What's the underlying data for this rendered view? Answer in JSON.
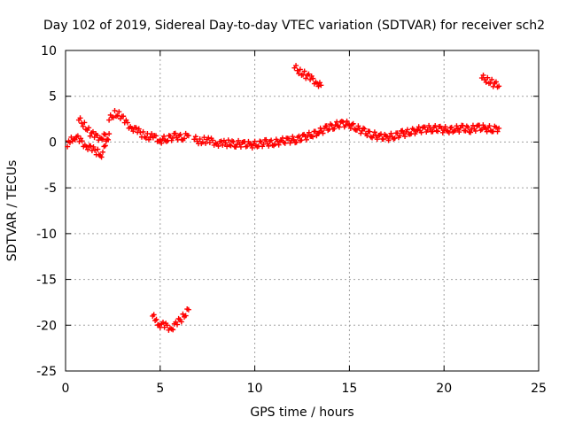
{
  "chart_data": {
    "type": "scatter",
    "title": "Day 102 of 2019, Sidereal Day-to-day VTEC variation (SDTVAR) for receiver sch2",
    "xlabel": "GPS time / hours",
    "ylabel": "SDTVAR / TECUs",
    "xlim": [
      0,
      25
    ],
    "ylim": [
      -25,
      10
    ],
    "x_ticks": [
      0,
      5,
      10,
      15,
      20,
      25
    ],
    "y_ticks": [
      -25,
      -20,
      -15,
      -10,
      -5,
      0,
      5,
      10
    ],
    "x_tick_labels": [
      "0",
      "5",
      "10",
      "15",
      "20",
      "25"
    ],
    "y_tick_labels": [
      "-25",
      "-20",
      "-15",
      "-10",
      "-5",
      "0",
      "5",
      "10"
    ],
    "grid": true,
    "marker": "plus",
    "color": "#ff0000",
    "series": [
      {
        "name": "seg1",
        "points": [
          [
            0.1,
            -0.5
          ],
          [
            0.3,
            0.3
          ],
          [
            0.5,
            0.6
          ],
          [
            0.8,
            0.1
          ],
          [
            1.1,
            -0.4
          ],
          [
            1.4,
            -0.8
          ],
          [
            1.7,
            -1.1
          ],
          [
            1.9,
            -1.3
          ],
          [
            2.1,
            -0.6
          ],
          [
            2.2,
            0.3
          ],
          [
            2.3,
            0.9
          ]
        ]
      },
      {
        "name": "seg2",
        "points": [
          [
            0.7,
            2.4
          ],
          [
            1.0,
            1.9
          ],
          [
            1.3,
            1.0
          ],
          [
            1.6,
            0.6
          ],
          [
            1.9,
            0.5
          ],
          [
            2.1,
            0.8
          ]
        ]
      },
      {
        "name": "seg3",
        "points": [
          [
            2.3,
            2.4
          ],
          [
            2.6,
            3.2
          ],
          [
            2.9,
            2.9
          ],
          [
            3.2,
            2.1
          ],
          [
            3.5,
            1.6
          ],
          [
            3.8,
            1.2
          ],
          [
            4.1,
            0.8
          ],
          [
            4.4,
            0.6
          ],
          [
            4.7,
            0.5
          ],
          [
            5.0,
            0.2
          ],
          [
            5.4,
            0.4
          ],
          [
            5.8,
            0.6
          ],
          [
            6.2,
            0.5
          ],
          [
            6.5,
            0.7
          ]
        ]
      },
      {
        "name": "seg4",
        "points": [
          [
            6.8,
            0.3
          ],
          [
            7.1,
            0.1
          ],
          [
            7.4,
            0.2
          ],
          [
            7.7,
            0.1
          ],
          [
            8.0,
            -0.1
          ],
          [
            8.3,
            -0.2
          ],
          [
            8.6,
            -0.1
          ],
          [
            9.0,
            -0.2
          ],
          [
            9.4,
            -0.2
          ],
          [
            9.8,
            -0.3
          ],
          [
            10.2,
            -0.2
          ],
          [
            10.6,
            -0.1
          ],
          [
            11.0,
            -0.1
          ],
          [
            11.4,
            0.1
          ],
          [
            11.8,
            0.2
          ],
          [
            12.2,
            0.3
          ],
          [
            12.6,
            0.5
          ],
          [
            13.0,
            0.8
          ],
          [
            13.4,
            1.1
          ],
          [
            13.8,
            1.5
          ],
          [
            14.2,
            1.8
          ],
          [
            14.6,
            2.0
          ],
          [
            15.0,
            1.9
          ],
          [
            15.4,
            1.5
          ],
          [
            15.8,
            1.1
          ],
          [
            16.2,
            0.8
          ],
          [
            16.6,
            0.6
          ],
          [
            17.0,
            0.5
          ],
          [
            17.4,
            0.7
          ],
          [
            17.8,
            0.9
          ],
          [
            18.2,
            1.1
          ],
          [
            18.6,
            1.3
          ],
          [
            19.0,
            1.4
          ],
          [
            19.4,
            1.5
          ],
          [
            19.8,
            1.4
          ],
          [
            20.2,
            1.3
          ],
          [
            20.6,
            1.4
          ],
          [
            21.0,
            1.5
          ],
          [
            21.4,
            1.4
          ],
          [
            21.8,
            1.6
          ],
          [
            22.2,
            1.5
          ],
          [
            22.6,
            1.4
          ],
          [
            22.9,
            1.5
          ]
        ]
      },
      {
        "name": "seg5",
        "points": [
          [
            12.1,
            8.1
          ],
          [
            12.4,
            7.7
          ],
          [
            12.7,
            7.3
          ],
          [
            13.0,
            6.9
          ],
          [
            13.3,
            6.5
          ],
          [
            13.5,
            6.2
          ]
        ]
      },
      {
        "name": "seg6",
        "points": [
          [
            22.0,
            7.0
          ],
          [
            22.3,
            6.8
          ],
          [
            22.6,
            6.4
          ],
          [
            22.9,
            6.1
          ]
        ]
      },
      {
        "name": "seg7",
        "points": [
          [
            4.6,
            -19.0
          ],
          [
            4.8,
            -19.6
          ],
          [
            5.0,
            -19.9
          ],
          [
            5.3,
            -20.1
          ],
          [
            5.6,
            -20.3
          ],
          [
            5.9,
            -19.8
          ],
          [
            6.2,
            -19.1
          ],
          [
            6.5,
            -18.3
          ]
        ]
      }
    ]
  }
}
